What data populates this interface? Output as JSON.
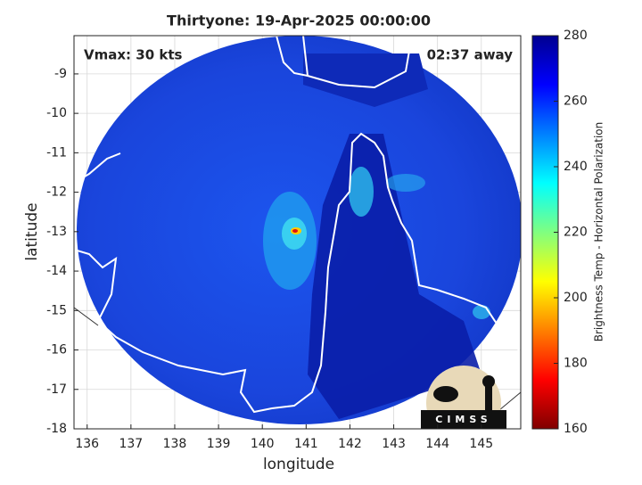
{
  "chart_data": {
    "type": "map",
    "title": "Thirtyone: 19-Apr-2025 00:00:00",
    "annotations": [
      "Vmax: 30 kts",
      "02:37 away"
    ],
    "xlabel": "longitude",
    "ylabel": "latitude",
    "xlim": [
      135.7,
      145.9
    ],
    "xticks": [
      136,
      137,
      138,
      139,
      140,
      141,
      142,
      143,
      144,
      145
    ],
    "ylim": [
      -18,
      -8.03
    ],
    "yticks": [
      -9,
      -10,
      -11,
      -12,
      -13,
      -14,
      -15,
      -16,
      -17,
      -18
    ],
    "grid": true,
    "colorbar": {
      "label": "Brightness Temp - Horizontal Polarization",
      "lim": [
        160,
        280
      ],
      "ticks": [
        160,
        180,
        200,
        220,
        240,
        260,
        280
      ],
      "colormap": [
        "#800000",
        "#ff0000",
        "#ff8000",
        "#ffff00",
        "#80ff80",
        "#00ffff",
        "#0080ff",
        "#0000ff",
        "#000090"
      ]
    },
    "logo": "CIMSS"
  }
}
